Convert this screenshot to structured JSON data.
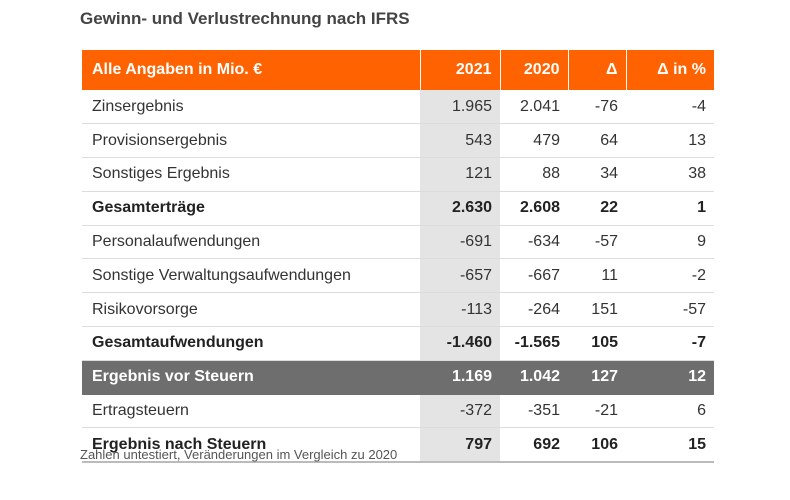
{
  "title": "Gewinn- und Verlustrechnung nach IFRS",
  "colors": {
    "header_bg": "#ff6200",
    "highlight_row_bg": "#6e6e6e",
    "year_column_bg": "#e4e4e4"
  },
  "table": {
    "headers": [
      "Alle Angaben in Mio. €",
      "2021",
      "2020",
      "Δ",
      "Δ in %"
    ],
    "rows": [
      {
        "label": "Zinsergebnis",
        "y2021": "1.965",
        "y2020": "2.041",
        "delta": "-76",
        "delta_pct": "-4",
        "style": "normal"
      },
      {
        "label": "Provisionsergebnis",
        "y2021": "543",
        "y2020": "479",
        "delta": "64",
        "delta_pct": "13",
        "style": "normal"
      },
      {
        "label": "Sonstiges Ergebnis",
        "y2021": "121",
        "y2020": "88",
        "delta": "34",
        "delta_pct": "38",
        "style": "normal"
      },
      {
        "label": "Gesamterträge",
        "y2021": "2.630",
        "y2020": "2.608",
        "delta": "22",
        "delta_pct": "1",
        "style": "bold"
      },
      {
        "label": "Personalaufwendungen",
        "y2021": "-691",
        "y2020": "-634",
        "delta": "-57",
        "delta_pct": "9",
        "style": "normal"
      },
      {
        "label": "Sonstige Verwaltungsaufwendungen",
        "y2021": "-657",
        "y2020": "-667",
        "delta": "11",
        "delta_pct": "-2",
        "style": "normal"
      },
      {
        "label": "Risikovorsorge",
        "y2021": "-113",
        "y2020": "-264",
        "delta": "151",
        "delta_pct": "-57",
        "style": "normal"
      },
      {
        "label": "Gesamtaufwendungen",
        "y2021": "-1.460",
        "y2020": "-1.565",
        "delta": "105",
        "delta_pct": "-7",
        "style": "bold"
      },
      {
        "label": "Ergebnis vor Steuern",
        "y2021": "1.169",
        "y2020": "1.042",
        "delta": "127",
        "delta_pct": "12",
        "style": "dark"
      },
      {
        "label": "Ertragsteuern",
        "y2021": "-372",
        "y2020": "-351",
        "delta": "-21",
        "delta_pct": "6",
        "style": "normal"
      },
      {
        "label": "Ergebnis nach Steuern",
        "y2021": "797",
        "y2020": "692",
        "delta": "106",
        "delta_pct": "15",
        "style": "bold"
      }
    ]
  },
  "footnote": "Zahlen untestiert, Veränderungen im Vergleich zu 2020"
}
